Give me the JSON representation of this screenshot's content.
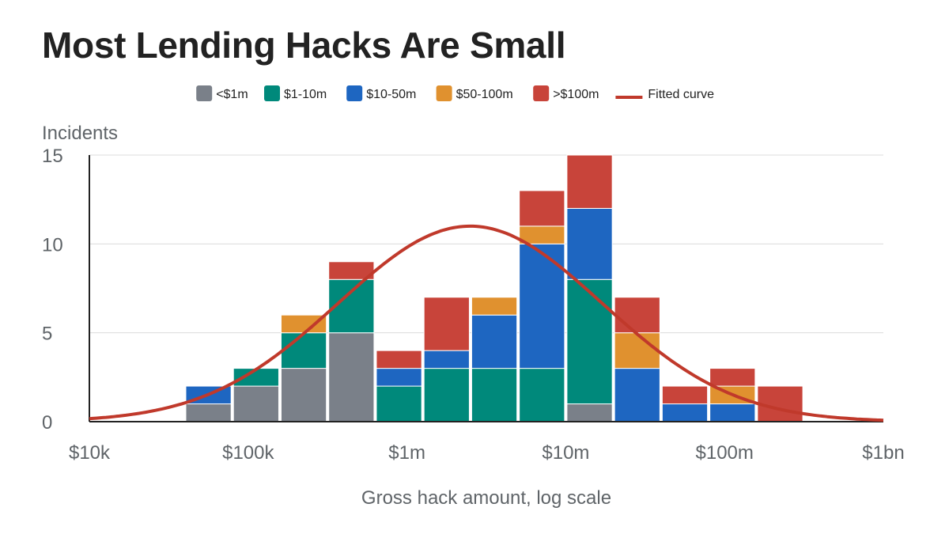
{
  "chart_data": {
    "type": "bar",
    "stacked": true,
    "title": "Most Lending Hacks Are Small",
    "ylabel": "Incidents",
    "xlabel": "Gross hack amount, log scale",
    "x_scale": "log",
    "xlim": [
      10000,
      1000000000
    ],
    "ylim": [
      0,
      15
    ],
    "y_ticks": [
      0,
      5,
      10,
      15
    ],
    "x_ticks": [
      {
        "value": 10000,
        "label": "$10k"
      },
      {
        "value": 100000,
        "label": "$100k"
      },
      {
        "value": 1000000,
        "label": "$1m"
      },
      {
        "value": 10000000,
        "label": "$10m"
      },
      {
        "value": 100000000,
        "label": "$100m"
      },
      {
        "value": 1000000000,
        "label": "$1bn"
      }
    ],
    "grid": "horizontal",
    "legend_position": "top",
    "bins": [
      {
        "from": 39811,
        "to": 79433
      },
      {
        "from": 79433,
        "to": 158489
      },
      {
        "from": 158489,
        "to": 316228
      },
      {
        "from": 316228,
        "to": 630957
      },
      {
        "from": 630957,
        "to": 1258925
      },
      {
        "from": 1258925,
        "to": 2511886
      },
      {
        "from": 2511886,
        "to": 5011872
      },
      {
        "from": 5011872,
        "to": 10000000
      },
      {
        "from": 10000000,
        "to": 19952623
      },
      {
        "from": 19952623,
        "to": 39810717
      },
      {
        "from": 39810717,
        "to": 79432823
      },
      {
        "from": 79432823,
        "to": 158489319
      },
      {
        "from": 158489319,
        "to": 316227766
      }
    ],
    "series": [
      {
        "name": "<$1m",
        "color": "#7a8089",
        "values": [
          1,
          2,
          3,
          5,
          0,
          0,
          0,
          0,
          1,
          0,
          0,
          0,
          0
        ]
      },
      {
        "name": "$1-10m",
        "color": "#00897b",
        "values": [
          0,
          1,
          2,
          3,
          2,
          3,
          3,
          3,
          7,
          0,
          0,
          0,
          0
        ]
      },
      {
        "name": "$10-50m",
        "color": "#1e66c1",
        "values": [
          1,
          0,
          0,
          0,
          1,
          1,
          3,
          7,
          4,
          3,
          1,
          1,
          0
        ]
      },
      {
        "name": "$50-100m",
        "color": "#e0912f",
        "values": [
          0,
          0,
          1,
          0,
          0,
          0,
          1,
          1,
          0,
          2,
          0,
          1,
          0
        ]
      },
      {
        "name": ">$100m",
        "color": "#c8443a",
        "values": [
          0,
          0,
          0,
          1,
          1,
          3,
          0,
          2,
          3,
          2,
          1,
          1,
          2
        ]
      }
    ],
    "fitted_curve": {
      "name": "Fitted curve",
      "color": "#c0392b",
      "peak_x": 2500000,
      "peak_y": 11.0,
      "log10_sigma": 0.83
    }
  }
}
